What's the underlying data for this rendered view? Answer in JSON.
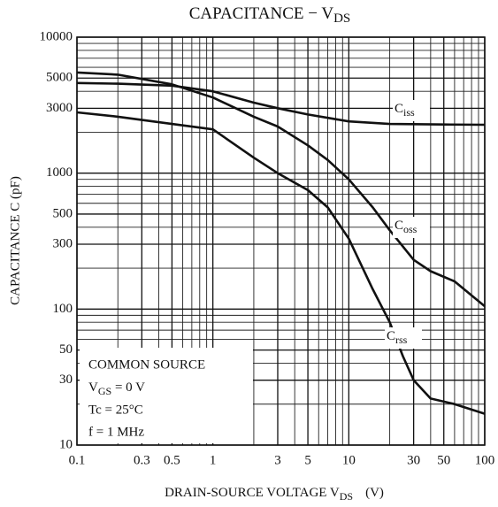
{
  "chart_data": {
    "type": "line",
    "title": {
      "main": "CAPACITANCE − V",
      "sub": "DS"
    },
    "ylabel": "CAPACITANCE  C  (pF)",
    "xlabel": {
      "main": "DRAIN-SOURCE VOLTAGE  V",
      "sub": "DS",
      "unit": "(V)"
    },
    "xscale": "log",
    "yscale": "log",
    "grid": true,
    "xlim": [
      0.1,
      100
    ],
    "ylim": [
      10,
      10000
    ],
    "xticks": [
      0.1,
      0.3,
      0.5,
      1,
      3,
      5,
      10,
      30,
      50,
      100
    ],
    "yticks": [
      10,
      30,
      50,
      100,
      300,
      500,
      1000,
      3000,
      5000,
      10000
    ],
    "xgrid": [
      0.2,
      0.4,
      0.6,
      0.7,
      0.8,
      0.9,
      2,
      4,
      6,
      7,
      8,
      9,
      20,
      40,
      60,
      70,
      80,
      90
    ],
    "ygrid": [
      20,
      40,
      60,
      70,
      80,
      90,
      200,
      400,
      600,
      700,
      800,
      900,
      2000,
      4000,
      6000,
      7000,
      8000,
      9000
    ],
    "annotation": [
      "COMMON SOURCE",
      {
        "main": "V",
        "sub": "GS",
        "rest": " = 0 V"
      },
      "Tc = 25°C",
      "f = 1 MHz"
    ],
    "series": [
      {
        "name": {
          "main": "C",
          "sub": "iss"
        },
        "color": "#111111",
        "x": [
          0.1,
          0.2,
          0.5,
          1,
          2,
          3,
          5,
          10,
          20,
          50,
          100
        ],
        "values": [
          4600,
          4550,
          4400,
          4000,
          3300,
          3000,
          2700,
          2400,
          2300,
          2280,
          2270
        ]
      },
      {
        "name": {
          "main": "C",
          "sub": "oss"
        },
        "color": "#111111",
        "x": [
          0.1,
          0.2,
          0.5,
          1,
          2,
          3,
          5,
          7,
          10,
          15,
          20,
          30,
          40,
          60,
          100
        ],
        "values": [
          5500,
          5300,
          4500,
          3600,
          2600,
          2200,
          1600,
          1250,
          900,
          560,
          380,
          230,
          190,
          160,
          105
        ]
      },
      {
        "name": {
          "main": "C",
          "sub": "rss"
        },
        "color": "#111111",
        "x": [
          0.1,
          0.2,
          0.5,
          1,
          2,
          3,
          5,
          7,
          10,
          15,
          20,
          25,
          30,
          40,
          60,
          100
        ],
        "values": [
          2800,
          2600,
          2300,
          2100,
          1300,
          1000,
          750,
          560,
          330,
          140,
          80,
          45,
          30,
          22,
          20,
          17
        ]
      }
    ]
  }
}
